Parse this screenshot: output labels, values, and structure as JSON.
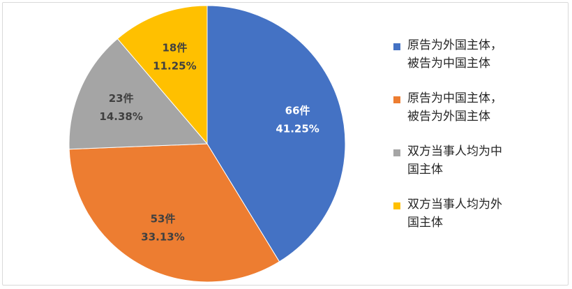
{
  "chart_data": {
    "type": "pie",
    "slices": [
      {
        "legend_label": "原告为外国主体，\n被告为中国主体",
        "count_label": "66件",
        "percent_label": "41.25%",
        "value": 66,
        "color": "#4472C4"
      },
      {
        "legend_label": "原告为中国主体，\n被告为外国主体",
        "count_label": "53件",
        "percent_label": "33.13%",
        "value": 53,
        "color": "#ED7D31"
      },
      {
        "legend_label": "双方当事人均为中\n国主体",
        "count_label": "23件",
        "percent_label": "14.38%",
        "value": 23,
        "color": "#A5A5A5"
      },
      {
        "legend_label": "双方当事人均为外\n国主体",
        "count_label": "18件",
        "percent_label": "11.25%",
        "value": 18,
        "color": "#FFC000"
      }
    ],
    "legend_position": "right"
  }
}
